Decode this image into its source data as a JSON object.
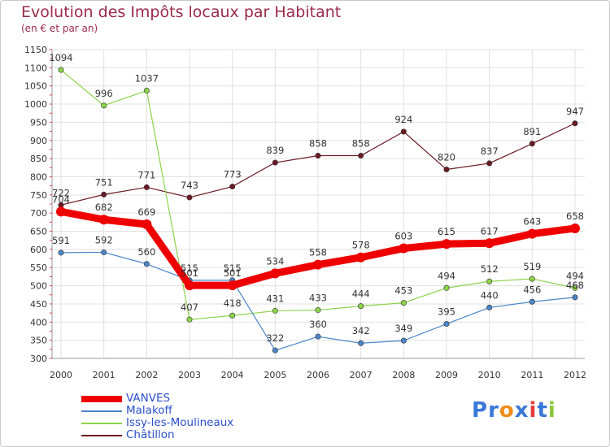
{
  "header": {
    "title": "Evolution des Impôts locaux par Habitant",
    "subtitle": "(en € et par an)"
  },
  "chart_data": {
    "type": "line",
    "x": [
      "2000",
      "2001",
      "2002",
      "2003",
      "2004",
      "2005",
      "2006",
      "2007",
      "2008",
      "2009",
      "2010",
      "2011",
      "2012"
    ],
    "ylim": [
      300,
      1150
    ],
    "yticks": [
      300,
      350,
      400,
      450,
      500,
      550,
      600,
      650,
      700,
      750,
      800,
      850,
      900,
      950,
      1000,
      1050,
      1100,
      1150
    ],
    "grid": true,
    "legend_position": "bottom-left",
    "series": [
      {
        "name": "Châtillon",
        "color": "#6b1a24",
        "values": [
          722,
          751,
          771,
          743,
          773,
          839,
          858,
          858,
          924,
          820,
          837,
          891,
          947
        ]
      },
      {
        "name": "Issy-les-Moulineaux",
        "color": "#8cd44a",
        "values": [
          1094,
          996,
          1037,
          407,
          418,
          431,
          433,
          444,
          453,
          494,
          512,
          519,
          494
        ]
      },
      {
        "name": "Malakoff",
        "color": "#4a86c8",
        "values": [
          591,
          592,
          560,
          515,
          515,
          322,
          360,
          342,
          349,
          395,
          440,
          456,
          468
        ]
      },
      {
        "name": "VANVES",
        "color": "#ee0000",
        "values": [
          704,
          682,
          669,
          501,
          501,
          534,
          558,
          578,
          603,
          615,
          617,
          643,
          658
        ]
      }
    ]
  },
  "legend": {
    "items": [
      {
        "label": "VANVES",
        "color": "#ee0000"
      },
      {
        "label": "Malakoff",
        "color": "#4a86c8"
      },
      {
        "label": "Issy-les-Moulineaux",
        "color": "#8cd44a"
      },
      {
        "label": "Châtillon",
        "color": "#6b1a24"
      }
    ]
  },
  "logo": {
    "text": "Proxiti",
    "colors": [
      "#3a78d8",
      "#3a78d8",
      "#f08c1a",
      "#3a78d8",
      "#e63c3c",
      "#3a78d8",
      "#8cc83c"
    ]
  }
}
